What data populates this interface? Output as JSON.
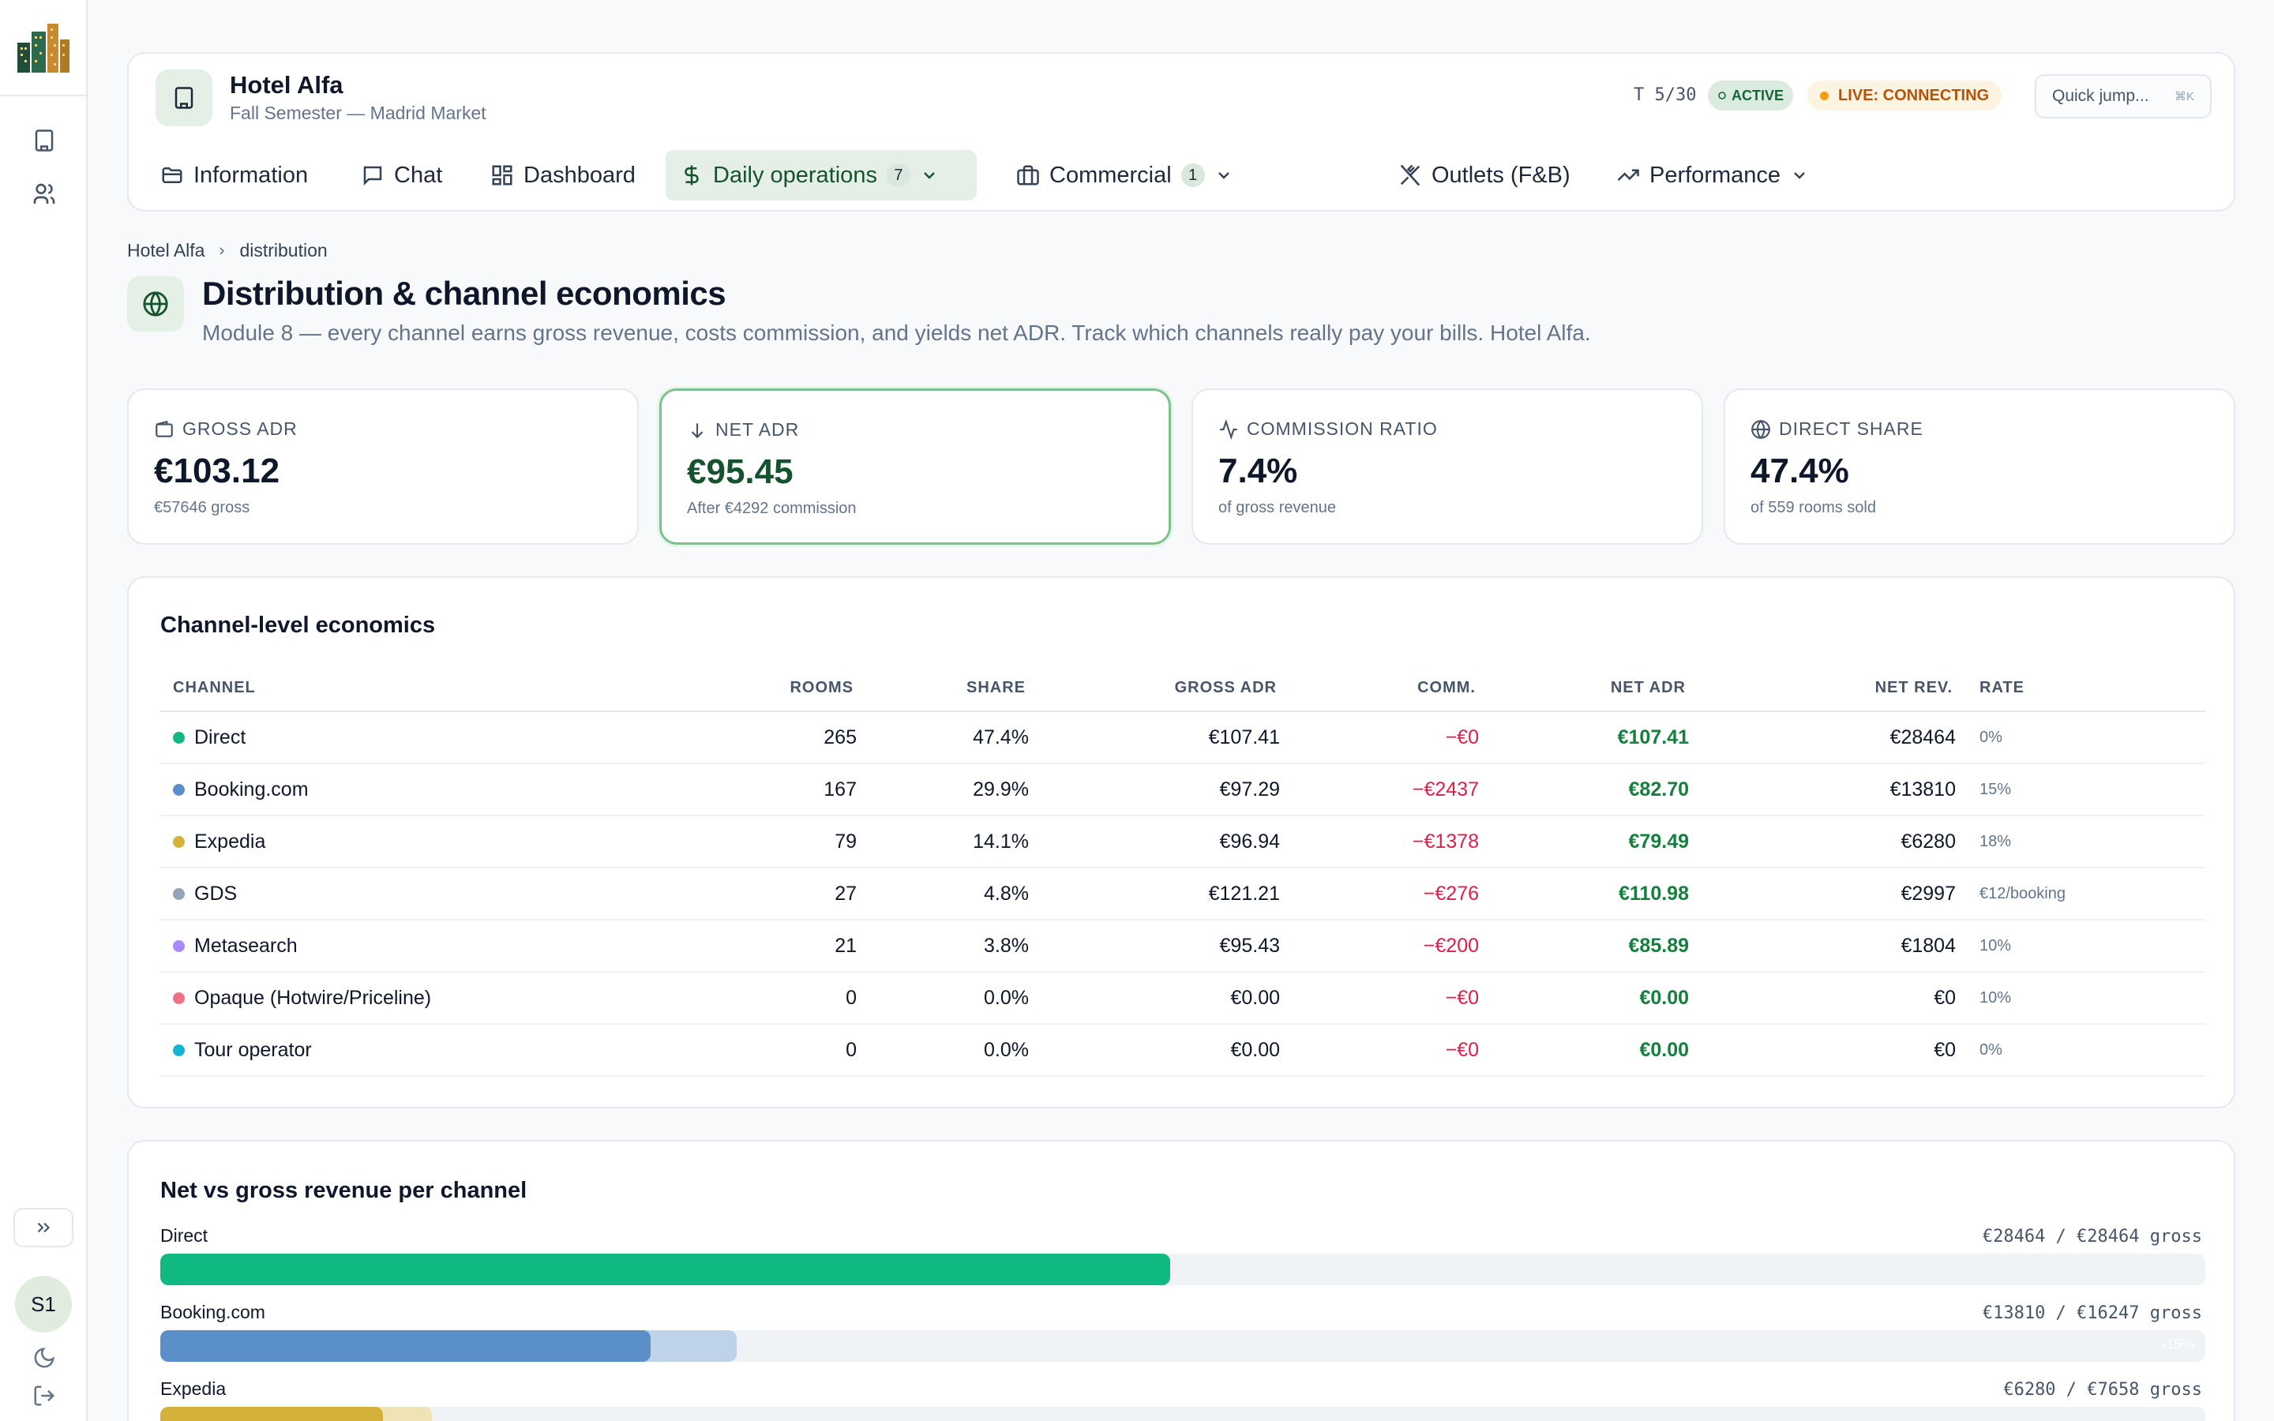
{
  "sidebar": {
    "icons": [
      "skyline-logo",
      "building-icon",
      "users-icon"
    ],
    "expand_icon": "chevrons-right-icon",
    "avatar": "S1",
    "bottom_icons": [
      "moon-icon",
      "logout-icon"
    ]
  },
  "header": {
    "hotel": "Hotel Alfa",
    "subtitle": "Fall Semester — Madrid Market",
    "turn": "T 5/30",
    "status": "ACTIVE",
    "live": "LIVE: CONNECTING",
    "quick_jump": "Quick jump...",
    "shortcut": "⌘K"
  },
  "nav": {
    "tabs": [
      {
        "label": "Information",
        "icon": "folder-icon"
      },
      {
        "label": "Chat",
        "icon": "chat-icon"
      },
      {
        "label": "Dashboard",
        "icon": "grid-icon"
      },
      {
        "label": "Daily operations",
        "icon": "dollar-icon",
        "badge": "7"
      },
      {
        "label": "Commercial",
        "icon": "briefcase-icon",
        "badge": "1"
      },
      {
        "label": "Outlets (F&B)",
        "icon": "utensils-icon"
      },
      {
        "label": "Performance",
        "icon": "trend-icon"
      }
    ]
  },
  "breadcrumb": {
    "root": "Hotel Alfa",
    "current": "distribution"
  },
  "page": {
    "title": "Distribution & channel economics",
    "subtitle": "Module 8 — every channel earns gross revenue, costs commission, and yields net ADR. Track which channels really pay your bills. Hotel Alfa."
  },
  "kpis": [
    {
      "label": "GROSS ADR",
      "value": "€103.12",
      "sub": "€57646 gross",
      "icon": "wallet-icon"
    },
    {
      "label": "NET ADR",
      "value": "€95.45",
      "sub": "After €4292 commission",
      "icon": "arrow-down-icon"
    },
    {
      "label": "COMMISSION RATIO",
      "value": "7.4%",
      "sub": "of gross revenue",
      "icon": "activity-icon"
    },
    {
      "label": "DIRECT SHARE",
      "value": "47.4%",
      "sub": "of 559 rooms sold",
      "icon": "globe-icon"
    }
  ],
  "table": {
    "title": "Channel-level economics",
    "headers": [
      "CHANNEL",
      "ROOMS",
      "SHARE",
      "GROSS ADR",
      "COMM.",
      "NET ADR",
      "NET REV.",
      "RATE"
    ],
    "rows": [
      {
        "channel": "Direct",
        "rooms": "265",
        "share": "47.4%",
        "gross_adr": "€107.41",
        "comm": "−€0",
        "net_adr": "€107.41",
        "net_rev": "€28464",
        "rate": "0%"
      },
      {
        "channel": "Booking.com",
        "rooms": "167",
        "share": "29.9%",
        "gross_adr": "€97.29",
        "comm": "−€2437",
        "net_adr": "€82.70",
        "net_rev": "€13810",
        "rate": "15%"
      },
      {
        "channel": "Expedia",
        "rooms": "79",
        "share": "14.1%",
        "gross_adr": "€96.94",
        "comm": "−€1378",
        "net_adr": "€79.49",
        "net_rev": "€6280",
        "rate": "18%"
      },
      {
        "channel": "GDS",
        "rooms": "27",
        "share": "4.8%",
        "gross_adr": "€121.21",
        "comm": "−€276",
        "net_adr": "€110.98",
        "net_rev": "€2997",
        "rate": "€12/booking"
      },
      {
        "channel": "Metasearch",
        "rooms": "21",
        "share": "3.8%",
        "gross_adr": "€95.43",
        "comm": "−€200",
        "net_adr": "€85.89",
        "net_rev": "€1804",
        "rate": "10%"
      },
      {
        "channel": "Opaque (Hotwire/Priceline)",
        "rooms": "0",
        "share": "0.0%",
        "gross_adr": "€0.00",
        "comm": "−€0",
        "net_adr": "€0.00",
        "net_rev": "€0",
        "rate": "10%"
      },
      {
        "channel": "Tour operator",
        "rooms": "0",
        "share": "0.0%",
        "gross_adr": "€0.00",
        "comm": "−€0",
        "net_adr": "€0.00",
        "net_rev": "€0",
        "rate": "0%"
      }
    ]
  },
  "channel_colors": [
    "#10b981",
    "#5a8fcb",
    "#d4b13a",
    "#94a3b8",
    "#a78bfa",
    "#f07185",
    "#15b5cf"
  ],
  "bars": {
    "title": "Net vs gross revenue per channel",
    "max_gross": 28464,
    "items": [
      {
        "label": "Direct",
        "value_text": "€28464 / €28464 gross",
        "net": 28464,
        "gross": 28464,
        "pct": "",
        "color": "#10b981",
        "light": "#a7e8cf"
      },
      {
        "label": "Booking.com",
        "value_text": "€13810 / €16247 gross",
        "net": 13810,
        "gross": 16247,
        "pct": "-15%",
        "color": "#5b8fc9",
        "light": "#bed2e9"
      },
      {
        "label": "Expedia",
        "value_text": "€6280 / €7658 gross",
        "net": 6280,
        "gross": 7658,
        "pct": "",
        "color": "#d4b13a",
        "light": "#efe2b4"
      }
    ]
  }
}
